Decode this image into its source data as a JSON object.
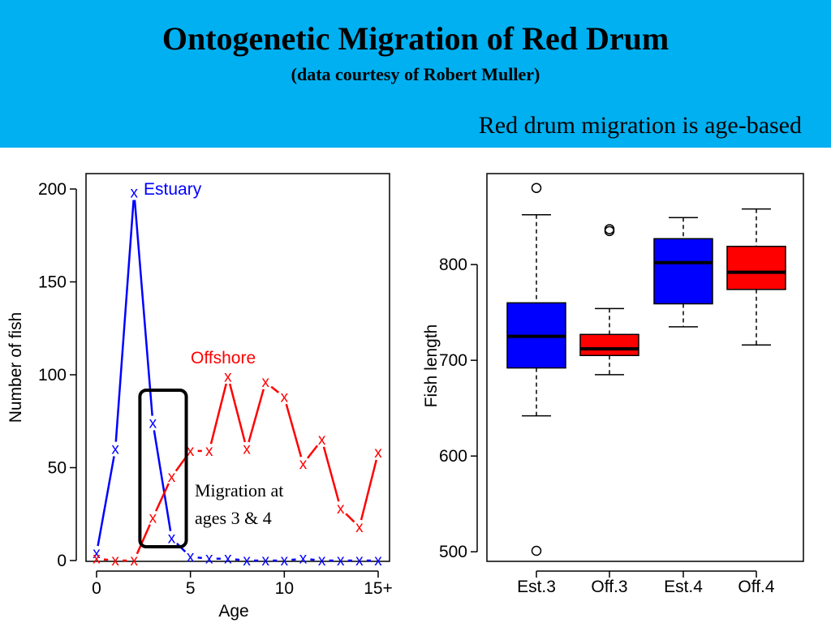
{
  "header": {
    "title": "Ontogenetic Migration of Red Drum",
    "subtitle": "(data courtesy of Robert Muller)",
    "tagline": "Red drum migration is age-based"
  },
  "chart_data": [
    {
      "type": "line",
      "xlabel": "Age",
      "ylabel": "Number of fish",
      "xlim": [
        0,
        15
      ],
      "ylim": [
        0,
        200
      ],
      "x_ticks": [
        0,
        5,
        10,
        15
      ],
      "x_tick_labels": [
        "0",
        "5",
        "10",
        "15+"
      ],
      "y_ticks": [
        0,
        50,
        100,
        150,
        200
      ],
      "y_tick_labels": [
        "0",
        "50",
        "100",
        "150",
        "200"
      ],
      "marker": "x",
      "series": [
        {
          "name": "Estuary",
          "color": "#0000ff",
          "x": [
            0,
            1,
            2,
            3,
            4,
            5,
            6,
            7,
            8,
            9,
            10,
            11,
            12,
            13,
            14,
            15
          ],
          "values": [
            4,
            60,
            198,
            74,
            12,
            2,
            1,
            1,
            0,
            0,
            0,
            1,
            0,
            0,
            0,
            0
          ]
        },
        {
          "name": "Offshore",
          "color": "#ff0000",
          "x": [
            0,
            1,
            2,
            3,
            4,
            5,
            6,
            7,
            8,
            9,
            10,
            11,
            12,
            13,
            14,
            15
          ],
          "values": [
            1,
            0,
            0,
            23,
            45,
            59,
            59,
            99,
            60,
            96,
            88,
            52,
            65,
            28,
            18,
            58
          ]
        }
      ],
      "annotation": {
        "text_line1": "Migration at",
        "text_line2": "ages 3 & 4",
        "highlight_x": [
          3,
          4
        ]
      }
    },
    {
      "type": "box",
      "ylabel": "Fish length",
      "ylim": [
        490,
        895
      ],
      "y_ticks": [
        500,
        600,
        700,
        800
      ],
      "y_tick_labels": [
        "500",
        "600",
        "700",
        "800"
      ],
      "categories": [
        "Est.3",
        "Off.3",
        "Est.4",
        "Off.4"
      ],
      "colors": [
        "#0000ff",
        "#ff0000",
        "#0000ff",
        "#ff0000"
      ],
      "boxes": [
        {
          "whisker_low": 642,
          "q1": 692,
          "median": 725,
          "q3": 760,
          "whisker_high": 852,
          "outliers": [
            880,
            501
          ]
        },
        {
          "whisker_low": 685,
          "q1": 705,
          "median": 712,
          "q3": 727,
          "whisker_high": 754,
          "outliers": [
            837,
            835
          ]
        },
        {
          "whisker_low": 735,
          "q1": 759,
          "median": 802,
          "q3": 827,
          "whisker_high": 849,
          "outliers": []
        },
        {
          "whisker_low": 716,
          "q1": 774,
          "median": 792,
          "q3": 819,
          "whisker_high": 858,
          "outliers": []
        }
      ]
    }
  ]
}
